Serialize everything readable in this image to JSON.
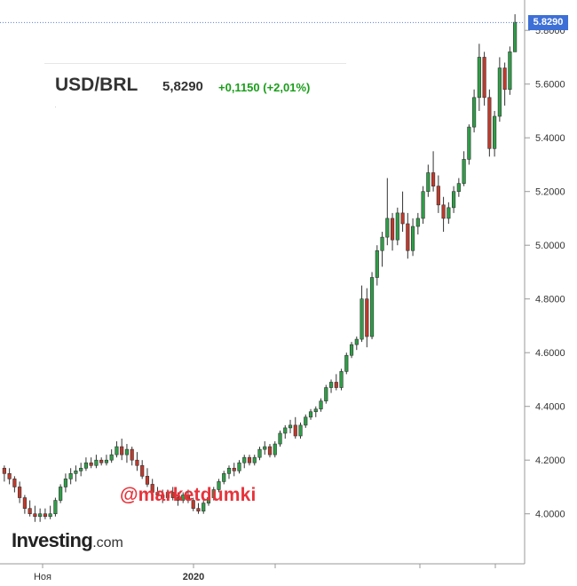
{
  "header": {
    "symbol": "USD/BRL",
    "price": "5,8290",
    "change": "+0,1150 (+2,01%)"
  },
  "watermark": "@marketdumki",
  "logo": {
    "main": "Investing",
    "sub": ".com"
  },
  "colors": {
    "up": "#2e9e47",
    "down": "#c0392b",
    "wick": "#333333",
    "axis": "#999999",
    "price_line": "#5a7fd6",
    "badge": "#3d6fd6",
    "change": "#1a9e1a",
    "watermark": "#e8333b"
  },
  "chart_data": {
    "type": "candlestick",
    "y_axis": {
      "side": "right",
      "ylim": [
        3.88,
        5.88
      ],
      "ticks": [
        "4.0000",
        "4.2000",
        "4.4000",
        "4.6000",
        "4.8000",
        "5.0000",
        "5.2000",
        "5.4000",
        "5.6000",
        "5.8000"
      ],
      "grid": false
    },
    "x_axis": {
      "labels": [
        "Ноя",
        "2020"
      ]
    },
    "last_price": {
      "value": 5.829,
      "label": "5.8290"
    },
    "candles": [
      [
        4.17,
        4.18,
        4.12,
        4.15
      ],
      [
        4.15,
        4.17,
        4.11,
        4.13
      ],
      [
        4.13,
        4.14,
        4.08,
        4.1
      ],
      [
        4.1,
        4.12,
        4.04,
        4.06
      ],
      [
        4.06,
        4.07,
        4.0,
        4.02
      ],
      [
        4.02,
        4.05,
        3.99,
        4.0
      ],
      [
        4.0,
        4.03,
        3.97,
        3.99
      ],
      [
        3.99,
        4.02,
        3.97,
        4.0
      ],
      [
        4.0,
        4.02,
        3.98,
        3.99
      ],
      [
        3.99,
        4.03,
        3.98,
        4.0
      ],
      [
        4.0,
        4.06,
        3.99,
        4.05
      ],
      [
        4.05,
        4.11,
        4.04,
        4.1
      ],
      [
        4.1,
        4.15,
        4.08,
        4.13
      ],
      [
        4.13,
        4.17,
        4.11,
        4.15
      ],
      [
        4.15,
        4.18,
        4.12,
        4.16
      ],
      [
        4.16,
        4.19,
        4.14,
        4.17
      ],
      [
        4.17,
        4.21,
        4.16,
        4.19
      ],
      [
        4.19,
        4.21,
        4.17,
        4.18
      ],
      [
        4.18,
        4.22,
        4.17,
        4.2
      ],
      [
        4.2,
        4.21,
        4.18,
        4.19
      ],
      [
        4.19,
        4.22,
        4.18,
        4.2
      ],
      [
        4.2,
        4.24,
        4.19,
        4.22
      ],
      [
        4.22,
        4.27,
        4.21,
        4.25
      ],
      [
        4.25,
        4.28,
        4.2,
        4.22
      ],
      [
        4.22,
        4.26,
        4.19,
        4.24
      ],
      [
        4.24,
        4.25,
        4.18,
        4.2
      ],
      [
        4.2,
        4.23,
        4.16,
        4.18
      ],
      [
        4.18,
        4.2,
        4.13,
        4.14
      ],
      [
        4.14,
        4.17,
        4.1,
        4.11
      ],
      [
        4.11,
        4.13,
        4.07,
        4.08
      ],
      [
        4.08,
        4.1,
        4.05,
        4.07
      ],
      [
        4.07,
        4.09,
        4.04,
        4.06
      ],
      [
        4.06,
        4.09,
        4.05,
        4.08
      ],
      [
        4.08,
        4.1,
        4.05,
        4.06
      ],
      [
        4.06,
        4.08,
        4.03,
        4.05
      ],
      [
        4.05,
        4.08,
        4.04,
        4.07
      ],
      [
        4.07,
        4.09,
        4.04,
        4.05
      ],
      [
        4.05,
        4.06,
        4.01,
        4.02
      ],
      [
        4.02,
        4.04,
        4.0,
        4.01
      ],
      [
        4.01,
        4.05,
        4.0,
        4.04
      ],
      [
        4.04,
        4.07,
        4.03,
        4.06
      ],
      [
        4.06,
        4.1,
        4.05,
        4.09
      ],
      [
        4.09,
        4.13,
        4.08,
        4.12
      ],
      [
        4.12,
        4.16,
        4.11,
        4.15
      ],
      [
        4.15,
        4.18,
        4.13,
        4.17
      ],
      [
        4.17,
        4.19,
        4.14,
        4.16
      ],
      [
        4.16,
        4.2,
        4.15,
        4.19
      ],
      [
        4.19,
        4.22,
        4.17,
        4.21
      ],
      [
        4.21,
        4.22,
        4.18,
        4.19
      ],
      [
        4.19,
        4.22,
        4.18,
        4.21
      ],
      [
        4.21,
        4.25,
        4.2,
        4.24
      ],
      [
        4.24,
        4.27,
        4.22,
        4.25
      ],
      [
        4.25,
        4.26,
        4.21,
        4.22
      ],
      [
        4.22,
        4.27,
        4.21,
        4.26
      ],
      [
        4.26,
        4.31,
        4.25,
        4.3
      ],
      [
        4.3,
        4.33,
        4.28,
        4.32
      ],
      [
        4.32,
        4.35,
        4.3,
        4.33
      ],
      [
        4.33,
        4.36,
        4.28,
        4.29
      ],
      [
        4.29,
        4.34,
        4.28,
        4.33
      ],
      [
        4.33,
        4.37,
        4.32,
        4.36
      ],
      [
        4.36,
        4.39,
        4.35,
        4.38
      ],
      [
        4.38,
        4.4,
        4.36,
        4.39
      ],
      [
        4.39,
        4.43,
        4.38,
        4.42
      ],
      [
        4.42,
        4.48,
        4.41,
        4.47
      ],
      [
        4.47,
        4.5,
        4.45,
        4.49
      ],
      [
        4.49,
        4.52,
        4.46,
        4.47
      ],
      [
        4.47,
        4.54,
        4.46,
        4.53
      ],
      [
        4.53,
        4.6,
        4.52,
        4.59
      ],
      [
        4.59,
        4.64,
        4.58,
        4.63
      ],
      [
        4.63,
        4.66,
        4.61,
        4.65
      ],
      [
        4.65,
        4.85,
        4.64,
        4.8
      ],
      [
        4.8,
        4.84,
        4.62,
        4.66
      ],
      [
        4.66,
        4.9,
        4.65,
        4.88
      ],
      [
        4.88,
        5.0,
        4.85,
        4.98
      ],
      [
        4.98,
        5.05,
        4.92,
        5.03
      ],
      [
        5.03,
        5.25,
        5.0,
        5.1
      ],
      [
        5.1,
        5.12,
        4.98,
        5.02
      ],
      [
        5.02,
        5.14,
        5.0,
        5.12
      ],
      [
        5.12,
        5.2,
        5.05,
        5.08
      ],
      [
        5.08,
        5.12,
        4.95,
        4.98
      ],
      [
        4.98,
        5.1,
        4.96,
        5.07
      ],
      [
        5.07,
        5.12,
        5.04,
        5.1
      ],
      [
        5.1,
        5.22,
        5.08,
        5.2
      ],
      [
        5.2,
        5.3,
        5.18,
        5.27
      ],
      [
        5.27,
        5.35,
        5.2,
        5.22
      ],
      [
        5.22,
        5.26,
        5.12,
        5.15
      ],
      [
        5.15,
        5.18,
        5.05,
        5.1
      ],
      [
        5.1,
        5.16,
        5.08,
        5.14
      ],
      [
        5.14,
        5.22,
        5.12,
        5.2
      ],
      [
        5.2,
        5.25,
        5.18,
        5.23
      ],
      [
        5.23,
        5.35,
        5.22,
        5.32
      ],
      [
        5.32,
        5.45,
        5.3,
        5.44
      ],
      [
        5.44,
        5.58,
        5.42,
        5.55
      ],
      [
        5.55,
        5.75,
        5.5,
        5.7
      ],
      [
        5.7,
        5.72,
        5.52,
        5.55
      ],
      [
        5.55,
        5.58,
        5.33,
        5.36
      ],
      [
        5.36,
        5.5,
        5.33,
        5.48
      ],
      [
        5.48,
        5.7,
        5.46,
        5.66
      ],
      [
        5.66,
        5.68,
        5.52,
        5.58
      ],
      [
        5.58,
        5.74,
        5.56,
        5.72
      ],
      [
        5.72,
        5.86,
        5.72,
        5.83
      ]
    ]
  }
}
